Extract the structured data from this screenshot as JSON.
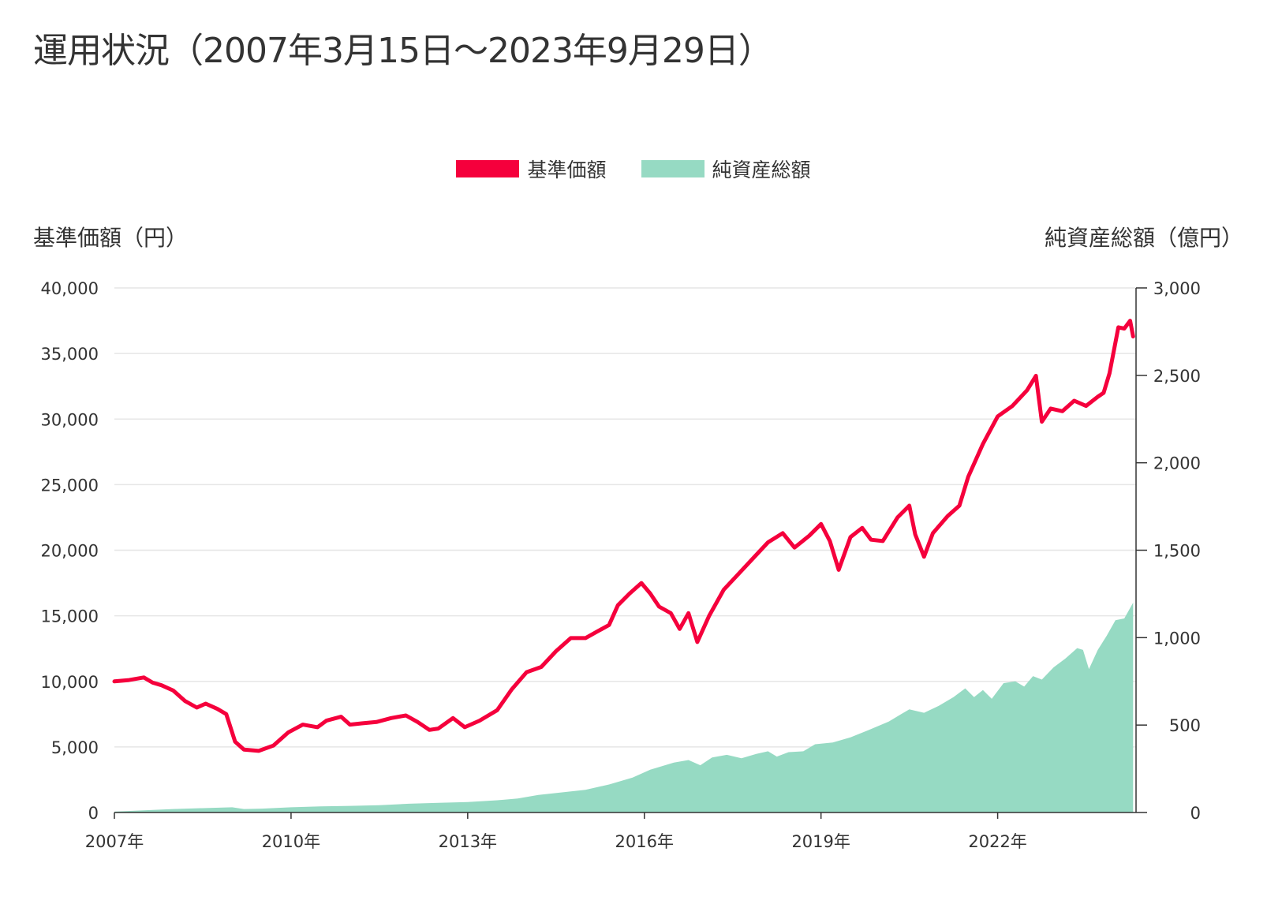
{
  "title": "運用状況（2007年3月15日〜2023年9月29日）",
  "colors": {
    "nav": "#f5003c",
    "assets": "#96dac3",
    "grid": "#e6e6e6",
    "axis": "#333333"
  },
  "chart_data": {
    "type": "line",
    "legend": [
      {
        "label": "基準価額",
        "color": "#f5003c",
        "shape": "line"
      },
      {
        "label": "純資産総額",
        "color": "#96dac3",
        "shape": "area"
      }
    ],
    "legend_position": "top-center",
    "ylabel_left": "基準価額（円）",
    "ylabel_right": "純資産総額（億円）",
    "ylim_left": [
      0,
      40000
    ],
    "ylim_right": [
      0,
      3000
    ],
    "yticks_left": [
      "40,000",
      "35,000",
      "30,000",
      "25,000",
      "20,000",
      "15,000",
      "10,000",
      "5,000",
      "0"
    ],
    "yticks_right": [
      "3,000",
      "2,500",
      "2,000",
      "1,500",
      "1,000",
      "500",
      "0"
    ],
    "xlim": [
      2007.0,
      2023.75
    ],
    "xticks": [
      "2007年",
      "2010年",
      "2013年",
      "2016年",
      "2019年",
      "2022年"
    ],
    "grid": true,
    "series": [
      {
        "name": "基準価額",
        "axis": "left",
        "type": "line",
        "points": [
          [
            2007.0,
            10000
          ],
          [
            2007.25,
            10100
          ],
          [
            2007.5,
            10300
          ],
          [
            2007.65,
            9900
          ],
          [
            2007.8,
            9700
          ],
          [
            2008.0,
            9300
          ],
          [
            2008.2,
            8500
          ],
          [
            2008.4,
            8000
          ],
          [
            2008.55,
            8300
          ],
          [
            2008.75,
            7900
          ],
          [
            2008.9,
            7500
          ],
          [
            2009.05,
            5400
          ],
          [
            2009.2,
            4800
          ],
          [
            2009.45,
            4700
          ],
          [
            2009.7,
            5100
          ],
          [
            2009.95,
            6100
          ],
          [
            2010.2,
            6700
          ],
          [
            2010.45,
            6500
          ],
          [
            2010.6,
            7000
          ],
          [
            2010.85,
            7300
          ],
          [
            2011.0,
            6700
          ],
          [
            2011.2,
            6800
          ],
          [
            2011.45,
            6900
          ],
          [
            2011.7,
            7200
          ],
          [
            2011.95,
            7400
          ],
          [
            2012.15,
            6900
          ],
          [
            2012.35,
            6300
          ],
          [
            2012.5,
            6400
          ],
          [
            2012.75,
            7200
          ],
          [
            2012.95,
            6500
          ],
          [
            2013.2,
            7000
          ],
          [
            2013.5,
            7800
          ],
          [
            2013.75,
            9400
          ],
          [
            2014.0,
            10700
          ],
          [
            2014.25,
            11100
          ],
          [
            2014.5,
            12300
          ],
          [
            2014.75,
            13300
          ],
          [
            2015.0,
            13300
          ],
          [
            2015.2,
            13800
          ],
          [
            2015.4,
            14300
          ],
          [
            2015.55,
            15800
          ],
          [
            2015.75,
            16700
          ],
          [
            2015.95,
            17500
          ],
          [
            2016.1,
            16700
          ],
          [
            2016.25,
            15700
          ],
          [
            2016.45,
            15200
          ],
          [
            2016.6,
            14000
          ],
          [
            2016.75,
            15200
          ],
          [
            2016.9,
            13000
          ],
          [
            2017.1,
            15000
          ],
          [
            2017.35,
            17000
          ],
          [
            2017.6,
            18200
          ],
          [
            2017.85,
            19400
          ],
          [
            2018.1,
            20600
          ],
          [
            2018.35,
            21300
          ],
          [
            2018.55,
            20200
          ],
          [
            2018.8,
            21100
          ],
          [
            2019.0,
            22000
          ],
          [
            2019.15,
            20700
          ],
          [
            2019.3,
            18500
          ],
          [
            2019.5,
            21000
          ],
          [
            2019.7,
            21700
          ],
          [
            2019.85,
            20800
          ],
          [
            2020.05,
            20700
          ],
          [
            2020.3,
            22500
          ],
          [
            2020.5,
            23400
          ],
          [
            2020.6,
            21200
          ],
          [
            2020.75,
            19500
          ],
          [
            2020.9,
            21300
          ],
          [
            2021.15,
            22600
          ],
          [
            2021.35,
            23400
          ],
          [
            2021.5,
            25600
          ],
          [
            2021.75,
            28100
          ],
          [
            2022.0,
            30200
          ],
          [
            2022.25,
            31000
          ],
          [
            2022.5,
            32200
          ],
          [
            2022.65,
            33300
          ],
          [
            2022.75,
            29800
          ],
          [
            2022.9,
            30800
          ],
          [
            2023.1,
            30600
          ],
          [
            2023.3,
            31400
          ],
          [
            2023.5,
            31000
          ],
          [
            2023.7,
            31700
          ],
          [
            2023.8,
            32000
          ],
          [
            2023.9,
            33500
          ],
          [
            2024.05,
            37000
          ],
          [
            2024.15,
            36900
          ],
          [
            2024.25,
            37500
          ],
          [
            2024.3,
            36300
          ]
        ]
      },
      {
        "name": "純資産総額",
        "axis": "right",
        "type": "area",
        "points": [
          [
            2007.0,
            5
          ],
          [
            2007.5,
            12
          ],
          [
            2008.0,
            20
          ],
          [
            2008.5,
            25
          ],
          [
            2009.0,
            30
          ],
          [
            2009.2,
            20
          ],
          [
            2009.5,
            22
          ],
          [
            2010.0,
            30
          ],
          [
            2010.5,
            35
          ],
          [
            2011.0,
            38
          ],
          [
            2011.5,
            42
          ],
          [
            2012.0,
            50
          ],
          [
            2012.5,
            55
          ],
          [
            2013.0,
            60
          ],
          [
            2013.5,
            70
          ],
          [
            2013.85,
            80
          ],
          [
            2014.2,
            100
          ],
          [
            2014.6,
            115
          ],
          [
            2015.0,
            130
          ],
          [
            2015.4,
            160
          ],
          [
            2015.8,
            200
          ],
          [
            2016.1,
            245
          ],
          [
            2016.5,
            285
          ],
          [
            2016.75,
            300
          ],
          [
            2016.95,
            270
          ],
          [
            2017.15,
            315
          ],
          [
            2017.4,
            330
          ],
          [
            2017.65,
            310
          ],
          [
            2017.9,
            335
          ],
          [
            2018.1,
            350
          ],
          [
            2018.25,
            320
          ],
          [
            2018.45,
            345
          ],
          [
            2018.7,
            350
          ],
          [
            2018.9,
            390
          ],
          [
            2019.2,
            400
          ],
          [
            2019.5,
            430
          ],
          [
            2019.8,
            470
          ],
          [
            2020.15,
            520
          ],
          [
            2020.5,
            590
          ],
          [
            2020.75,
            570
          ],
          [
            2021.0,
            610
          ],
          [
            2021.25,
            660
          ],
          [
            2021.45,
            710
          ],
          [
            2021.6,
            660
          ],
          [
            2021.75,
            700
          ],
          [
            2021.9,
            650
          ],
          [
            2022.1,
            740
          ],
          [
            2022.3,
            750
          ],
          [
            2022.45,
            720
          ],
          [
            2022.6,
            780
          ],
          [
            2022.75,
            760
          ],
          [
            2022.95,
            830
          ],
          [
            2023.15,
            880
          ],
          [
            2023.35,
            940
          ],
          [
            2023.45,
            930
          ],
          [
            2023.55,
            820
          ],
          [
            2023.7,
            930
          ],
          [
            2023.85,
            1010
          ],
          [
            2024.0,
            1100
          ],
          [
            2024.15,
            1110
          ],
          [
            2024.3,
            1200
          ]
        ]
      }
    ]
  }
}
